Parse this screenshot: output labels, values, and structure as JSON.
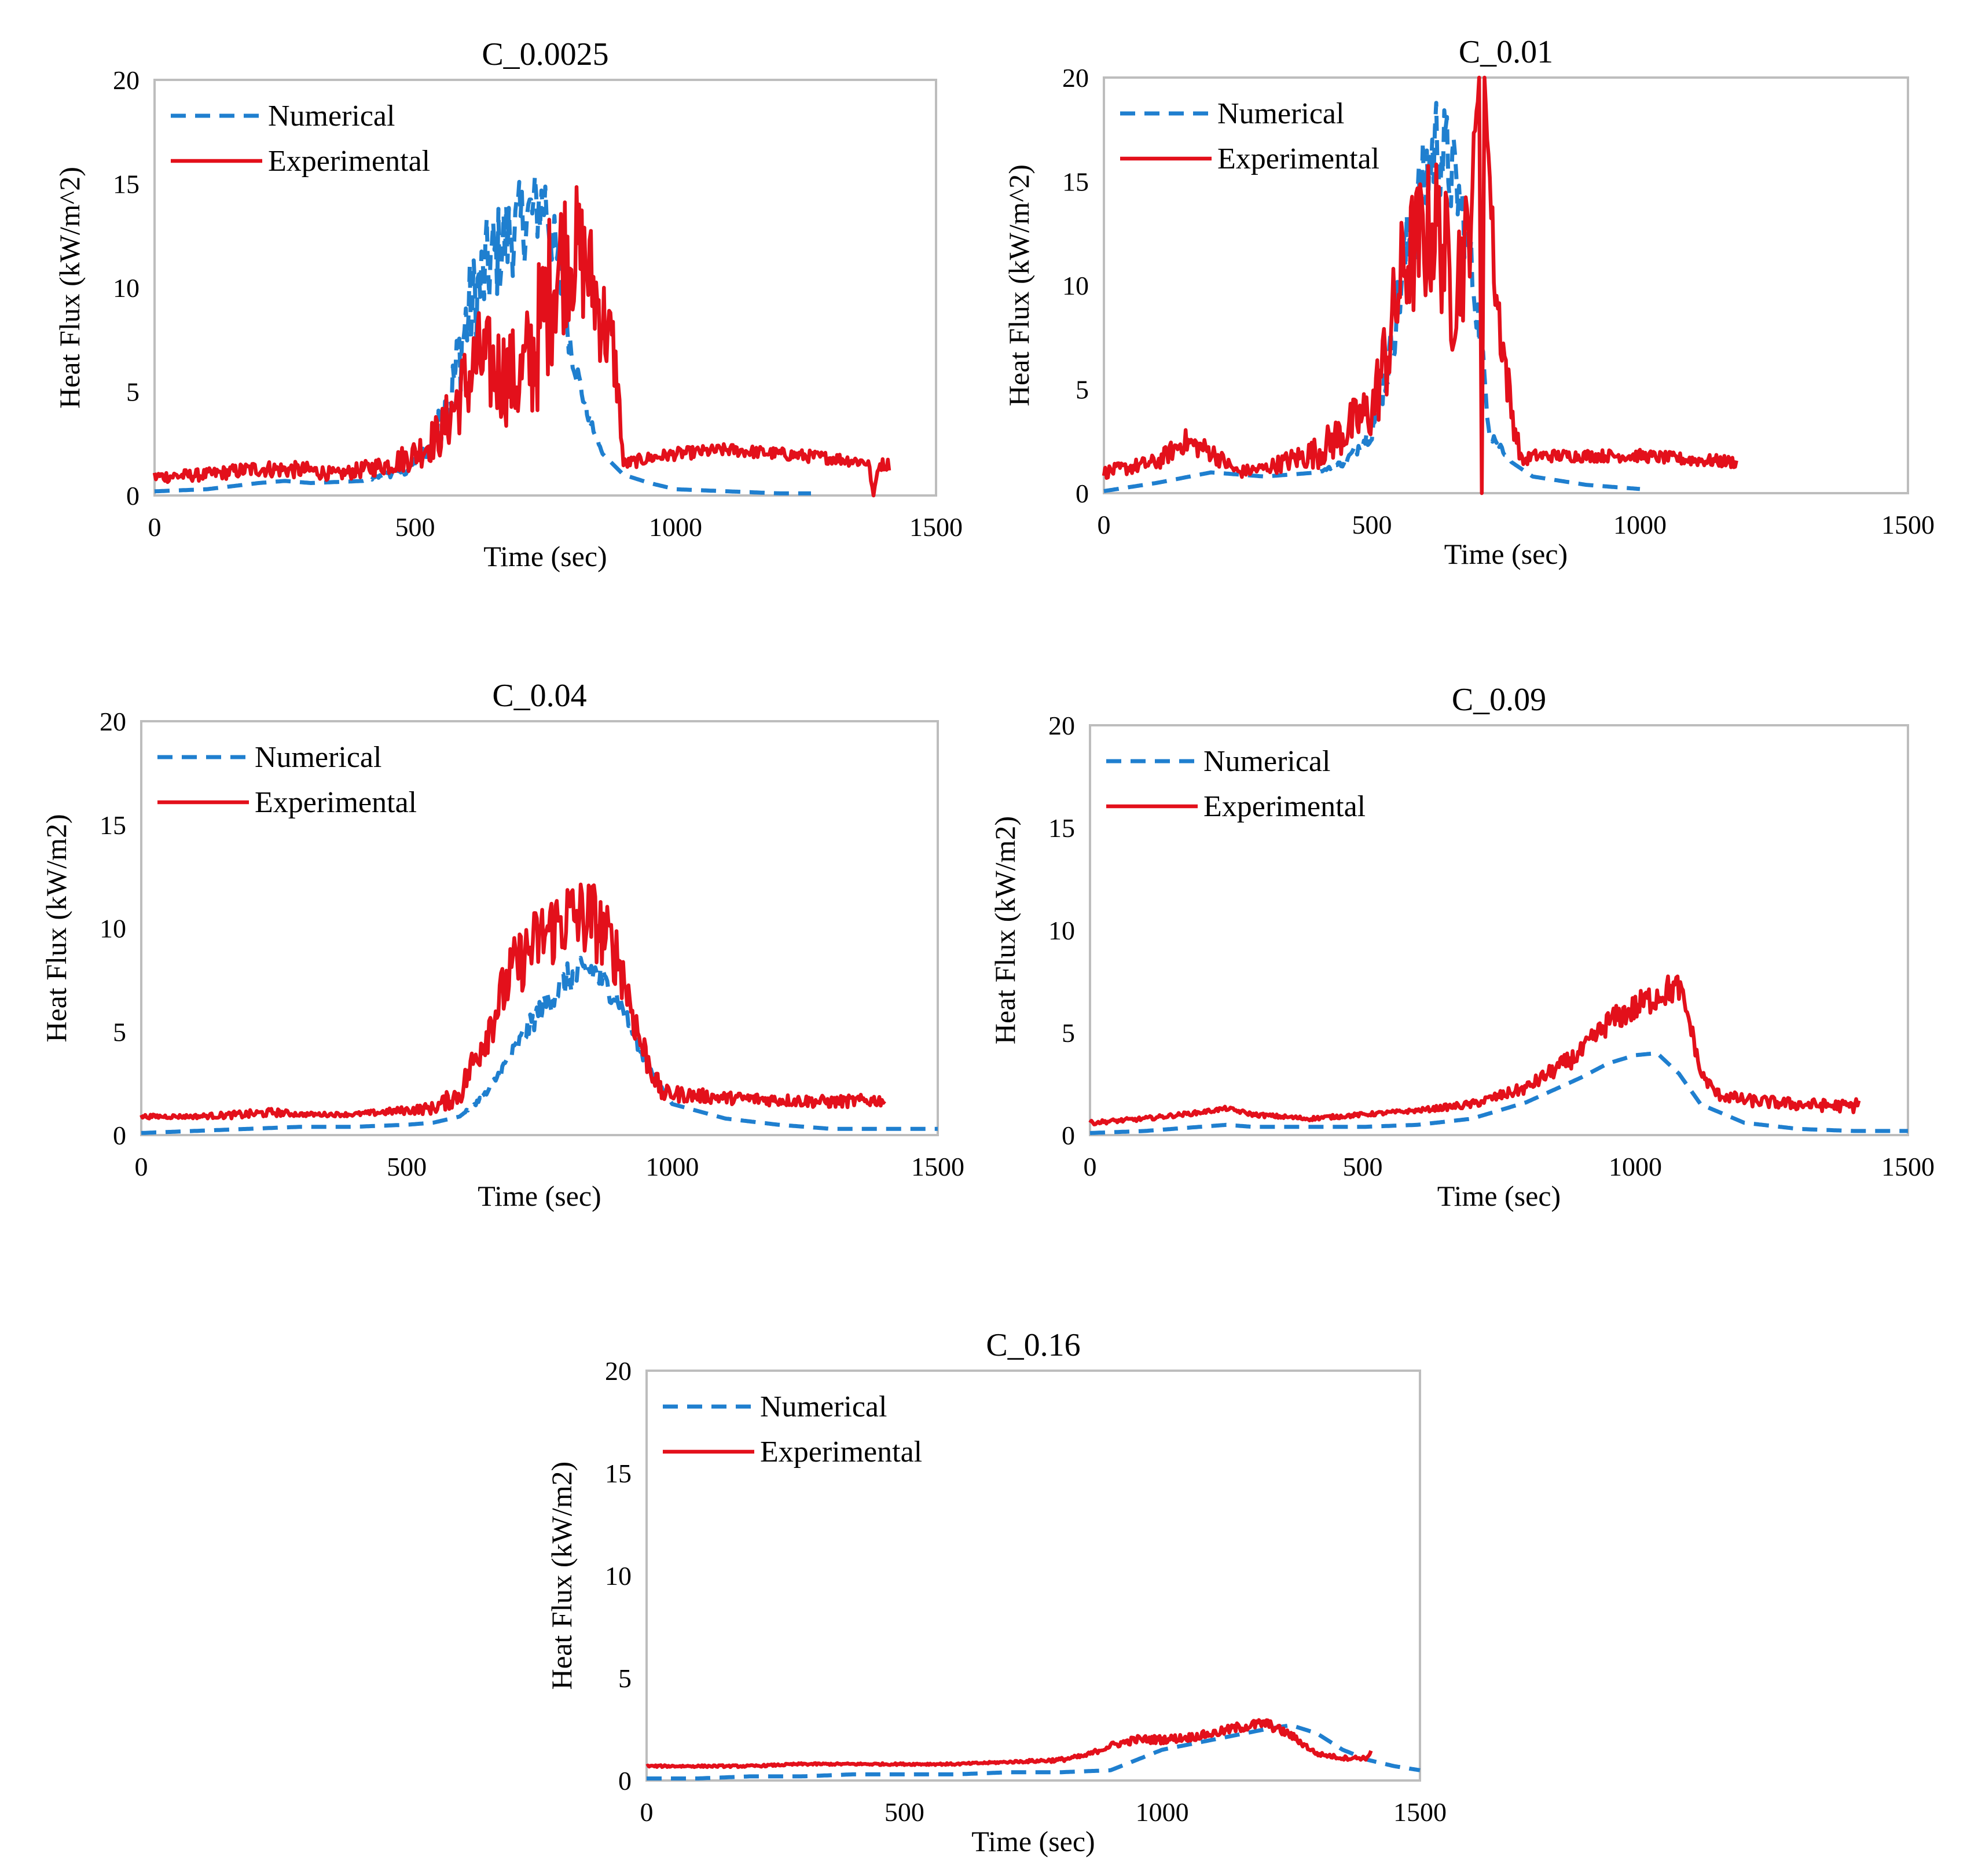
{
  "chart_data": [
    {
      "type": "line",
      "title": "C_0.0025",
      "xlabel": "Time (sec)",
      "ylabel": "Heat Flux (kW/m^2)",
      "xlim": [
        0,
        1500
      ],
      "ylim": [
        0,
        20
      ],
      "xticks": [
        "0",
        "500",
        "1000",
        "1500"
      ],
      "yticks": [
        "0",
        "5",
        "10",
        "15",
        "20"
      ],
      "legend": "top-left",
      "series": [
        {
          "name": "Numerical",
          "style": "dashed",
          "color": "#1f7fcf",
          "x": [
            0,
            100,
            200,
            250,
            300,
            400,
            480,
            530,
            570,
            600,
            640,
            680,
            720,
            750,
            775,
            800,
            830,
            860,
            900,
            950,
            1000,
            1100,
            1200,
            1260
          ],
          "y": [
            0.2,
            0.3,
            0.6,
            0.7,
            0.6,
            0.7,
            1.2,
            2.2,
            5.0,
            8.5,
            11.0,
            12.5,
            13.5,
            14.2,
            11.0,
            7.0,
            4.0,
            2.0,
            1.0,
            0.6,
            0.3,
            0.2,
            0.1,
            0.1
          ],
          "noise": [
            0,
            0,
            0,
            0,
            0,
            0,
            0.3,
            0.6,
            1.5,
            2.5,
            2.5,
            2.2,
            2.0,
            1.8,
            1.5,
            0.8,
            0.3,
            0,
            0,
            0,
            0,
            0,
            0,
            0
          ]
        },
        {
          "name": "Experimental",
          "style": "solid",
          "color": "#e3101b",
          "x": [
            0,
            100,
            200,
            300,
            350,
            450,
            500,
            550,
            580,
            620,
            660,
            700,
            730,
            750,
            770,
            800,
            830,
            860,
            880,
            890,
            900,
            950,
            1000,
            1100,
            1200,
            1300,
            1370,
            1380,
            1390,
            1410
          ],
          "y": [
            0.9,
            1.0,
            1.3,
            1.2,
            1.0,
            1.5,
            2.0,
            3.0,
            4.5,
            6.5,
            6.0,
            5.5,
            7.0,
            9.0,
            11.0,
            12.0,
            11.0,
            8.5,
            7.0,
            5.0,
            1.5,
            1.8,
            2.0,
            2.2,
            2.0,
            1.8,
            1.6,
            0.0,
            1.5,
            1.5
          ],
          "noise": [
            0.3,
            0.3,
            0.4,
            0.4,
            0.3,
            0.5,
            0.8,
            1.2,
            1.8,
            2.5,
            2.5,
            2.5,
            3.5,
            4.0,
            4.0,
            3.5,
            3.0,
            2.5,
            2.0,
            1.0,
            0.3,
            0.3,
            0.3,
            0.3,
            0.3,
            0.3,
            0.3,
            0,
            0.3,
            0.3
          ]
        }
      ]
    },
    {
      "type": "line",
      "title": "C_0.01",
      "xlabel": "Time (sec)",
      "ylabel": "Heat Flux (kW/m^2)",
      "xlim": [
        0,
        1500
      ],
      "ylim": [
        0,
        20
      ],
      "xticks": [
        "0",
        "500",
        "1000",
        "1500"
      ],
      "yticks": [
        "0",
        "5",
        "10",
        "15",
        "20"
      ],
      "legend": "top-left",
      "series": [
        {
          "name": "Numerical",
          "style": "dashed",
          "color": "#1f7fcf",
          "x": [
            0,
            100,
            200,
            300,
            400,
            450,
            500,
            530,
            560,
            590,
            620,
            640,
            660,
            680,
            700,
            720,
            760,
            800,
            900,
            1000
          ],
          "y": [
            0.1,
            0.5,
            1.0,
            0.8,
            1.0,
            1.5,
            3.0,
            6.0,
            11.0,
            14.0,
            17.0,
            16.0,
            14.5,
            12.0,
            8.0,
            3.0,
            1.5,
            0.8,
            0.4,
            0.2
          ],
          "noise": [
            0,
            0,
            0,
            0,
            0,
            0.2,
            0.5,
            1.0,
            2.0,
            2.5,
            2.5,
            2.5,
            2.0,
            1.5,
            1.0,
            0.5,
            0,
            0,
            0,
            0
          ]
        },
        {
          "name": "Experimental",
          "style": "solid",
          "color": "#e3101b",
          "x": [
            0,
            100,
            150,
            200,
            250,
            300,
            400,
            450,
            500,
            530,
            560,
            590,
            620,
            650,
            680,
            700,
            705,
            710,
            730,
            760,
            780,
            800,
            900,
            1000,
            1100,
            1180
          ],
          "y": [
            1.0,
            1.5,
            2.5,
            2.0,
            1.0,
            1.2,
            2.0,
            3.0,
            4.0,
            7.0,
            11.0,
            12.0,
            13.0,
            10.0,
            12.0,
            20.0,
            0.0,
            20.0,
            10.0,
            4.0,
            1.5,
            1.8,
            1.8,
            1.8,
            1.6,
            1.5
          ],
          "noise": [
            0.3,
            0.4,
            0.6,
            0.5,
            0.3,
            0.3,
            0.8,
            1.2,
            1.5,
            2.5,
            3.0,
            3.5,
            3.5,
            3.5,
            3.0,
            0,
            0,
            0,
            2.0,
            1.0,
            0.3,
            0.3,
            0.3,
            0.3,
            0.3,
            0.3
          ]
        }
      ]
    },
    {
      "type": "line",
      "title": "C_0.04",
      "xlabel": "Time (sec)",
      "ylabel": "Heat Flux (kW/m2)",
      "xlim": [
        0,
        1500
      ],
      "ylim": [
        0,
        20
      ],
      "xticks": [
        "0",
        "500",
        "1000",
        "1500"
      ],
      "yticks": [
        "0",
        "5",
        "10",
        "15",
        "20"
      ],
      "legend": "top-left",
      "series": [
        {
          "name": "Numerical",
          "style": "dashed",
          "color": "#1f7fcf",
          "x": [
            0,
            100,
            200,
            300,
            400,
            500,
            550,
            600,
            650,
            700,
            750,
            800,
            850,
            900,
            950,
            1000,
            1100,
            1200,
            1300,
            1400,
            1500
          ],
          "y": [
            0.1,
            0.2,
            0.3,
            0.4,
            0.4,
            0.5,
            0.6,
            0.9,
            2.0,
            4.0,
            6.0,
            7.5,
            8.0,
            6.5,
            3.5,
            1.5,
            0.8,
            0.5,
            0.3,
            0.3,
            0.3
          ],
          "noise": [
            0,
            0,
            0,
            0,
            0,
            0,
            0,
            0,
            0.2,
            0.4,
            0.6,
            0.8,
            0.8,
            0.5,
            0.2,
            0,
            0,
            0,
            0,
            0,
            0
          ]
        },
        {
          "name": "Experimental",
          "style": "solid",
          "color": "#e3101b",
          "x": [
            0,
            100,
            200,
            250,
            300,
            400,
            500,
            550,
            600,
            650,
            700,
            750,
            800,
            850,
            900,
            940,
            980,
            1000,
            1100,
            1200,
            1300,
            1400
          ],
          "y": [
            0.9,
            0.9,
            1.0,
            1.1,
            1.0,
            1.0,
            1.2,
            1.3,
            2.0,
            5.0,
            8.0,
            9.5,
            10.5,
            10.5,
            8.5,
            4.5,
            2.0,
            2.0,
            1.8,
            1.7,
            1.6,
            1.7
          ],
          "noise": [
            0.1,
            0.1,
            0.2,
            0.2,
            0.1,
            0.1,
            0.2,
            0.3,
            0.6,
            1.2,
            1.5,
            1.8,
            2.0,
            2.0,
            1.5,
            1.0,
            0.4,
            0.4,
            0.3,
            0.3,
            0.3,
            0.3
          ]
        }
      ]
    },
    {
      "type": "line",
      "title": "C_0.09",
      "xlabel": "Time (sec)",
      "ylabel": "Heat Flux (kW/m2)",
      "xlim": [
        0,
        1500
      ],
      "ylim": [
        0,
        20
      ],
      "xticks": [
        "0",
        "500",
        "1000",
        "1500"
      ],
      "yticks": [
        "0",
        "5",
        "10",
        "15",
        "20"
      ],
      "legend": "top-left",
      "series": [
        {
          "name": "Numerical",
          "style": "dashed",
          "color": "#1f7fcf",
          "x": [
            0,
            100,
            200,
            250,
            300,
            400,
            500,
            600,
            700,
            800,
            900,
            950,
            1000,
            1040,
            1080,
            1120,
            1200,
            1300,
            1400,
            1500
          ],
          "y": [
            0.1,
            0.2,
            0.4,
            0.5,
            0.4,
            0.4,
            0.4,
            0.5,
            0.8,
            1.6,
            2.8,
            3.5,
            3.9,
            4.0,
            3.0,
            1.5,
            0.6,
            0.3,
            0.2,
            0.2
          ],
          "noise": [
            0,
            0,
            0,
            0,
            0,
            0,
            0,
            0,
            0,
            0,
            0,
            0,
            0,
            0,
            0,
            0,
            0,
            0,
            0,
            0
          ]
        },
        {
          "name": "Experimental",
          "style": "solid",
          "color": "#e3101b",
          "x": [
            0,
            100,
            200,
            250,
            300,
            400,
            500,
            600,
            700,
            800,
            900,
            950,
            1000,
            1050,
            1080,
            1100,
            1120,
            1150,
            1200,
            1300,
            1400,
            1410
          ],
          "y": [
            0.6,
            0.8,
            1.1,
            1.3,
            1.0,
            0.8,
            1.0,
            1.2,
            1.5,
            2.3,
            4.0,
            5.5,
            6.2,
            7.0,
            7.2,
            5.5,
            3.0,
            2.0,
            1.7,
            1.5,
            1.4,
            1.7
          ],
          "noise": [
            0.1,
            0.1,
            0.1,
            0.1,
            0.1,
            0.1,
            0.1,
            0.1,
            0.2,
            0.3,
            0.5,
            0.6,
            0.7,
            0.8,
            0.7,
            0.5,
            0.3,
            0.3,
            0.3,
            0.3,
            0.3,
            0.2
          ]
        }
      ]
    },
    {
      "type": "line",
      "title": "C_0.16",
      "xlabel": "Time (sec)",
      "ylabel": "Heat Flux (kW/m2)",
      "xlim": [
        0,
        1500
      ],
      "ylim": [
        0,
        20
      ],
      "xticks": [
        "0",
        "500",
        "1000",
        "1500"
      ],
      "yticks": [
        "0",
        "5",
        "10",
        "15",
        "20"
      ],
      "legend": "top-left",
      "series": [
        {
          "name": "Numerical",
          "style": "dashed",
          "color": "#1f7fcf",
          "x": [
            0,
            100,
            200,
            300,
            400,
            500,
            600,
            700,
            800,
            900,
            950,
            1000,
            1100,
            1200,
            1250,
            1300,
            1350,
            1400,
            1450,
            1500
          ],
          "y": [
            0.1,
            0.1,
            0.2,
            0.2,
            0.3,
            0.3,
            0.3,
            0.4,
            0.4,
            0.5,
            1.0,
            1.5,
            2.0,
            2.5,
            2.7,
            2.3,
            1.5,
            1.0,
            0.7,
            0.5
          ],
          "noise": [
            0,
            0,
            0,
            0,
            0,
            0,
            0,
            0,
            0,
            0,
            0,
            0,
            0,
            0,
            0,
            0,
            0,
            0,
            0,
            0
          ]
        },
        {
          "name": "Experimental",
          "style": "solid",
          "color": "#e3101b",
          "x": [
            0,
            100,
            200,
            300,
            400,
            500,
            600,
            700,
            800,
            850,
            900,
            950,
            1000,
            1050,
            1100,
            1150,
            1200,
            1250,
            1300,
            1350,
            1400,
            1405
          ],
          "y": [
            0.7,
            0.7,
            0.7,
            0.8,
            0.8,
            0.8,
            0.8,
            0.9,
            1.0,
            1.2,
            1.7,
            2.0,
            2.0,
            2.1,
            2.3,
            2.6,
            2.8,
            2.2,
            1.3,
            1.1,
            1.1,
            1.5
          ],
          "noise": [
            0.05,
            0.05,
            0.05,
            0.05,
            0.05,
            0.05,
            0.05,
            0.05,
            0.1,
            0.1,
            0.15,
            0.2,
            0.2,
            0.2,
            0.2,
            0.25,
            0.25,
            0.2,
            0.1,
            0.1,
            0.1,
            0.1
          ]
        }
      ]
    }
  ]
}
